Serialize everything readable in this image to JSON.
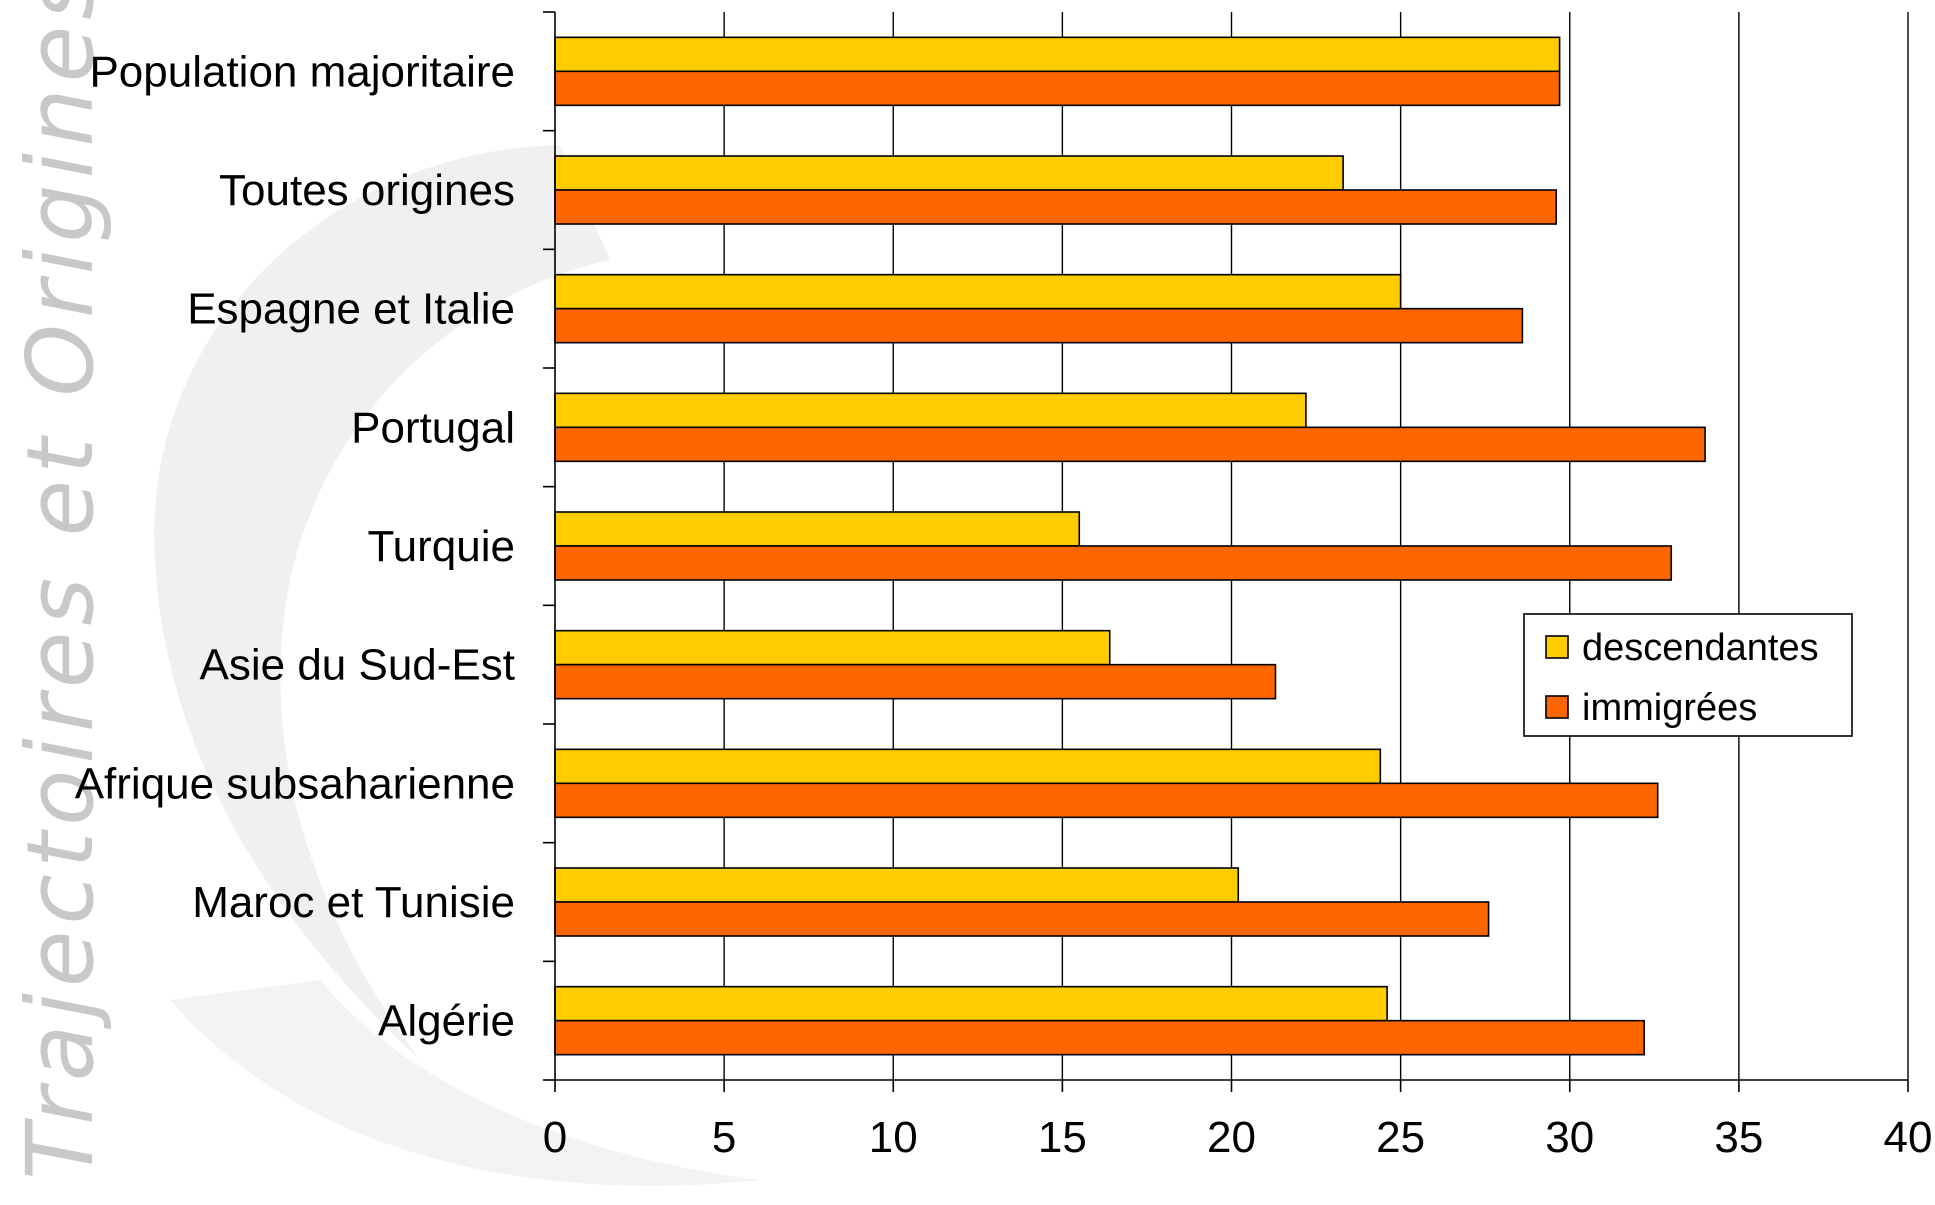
{
  "watermark": "Trajectoires et Origines",
  "chart_data": {
    "type": "bar",
    "orientation": "horizontal",
    "title": "",
    "xlabel": "",
    "ylabel": "",
    "xlim": [
      0,
      40
    ],
    "x_ticks": [
      "0",
      "5",
      "10",
      "15",
      "20",
      "25",
      "30",
      "35",
      "40"
    ],
    "grid": "vertical",
    "legend_position": "right",
    "categories": [
      "Population majoritaire",
      "Toutes origines",
      "Espagne et Italie",
      "Portugal",
      "Turquie",
      "Asie du Sud-Est",
      "Afrique subsaharienne",
      "Maroc et Tunisie",
      "Algérie"
    ],
    "series": [
      {
        "name": "descendantes",
        "color": "#FFCC00",
        "values": [
          29.7,
          23.3,
          25.0,
          22.2,
          15.5,
          16.4,
          24.4,
          20.2,
          24.6
        ]
      },
      {
        "name": "immigrées",
        "color": "#FF6600",
        "values": [
          29.7,
          29.6,
          28.6,
          34.0,
          33.0,
          21.3,
          32.6,
          27.6,
          32.2
        ]
      }
    ]
  }
}
